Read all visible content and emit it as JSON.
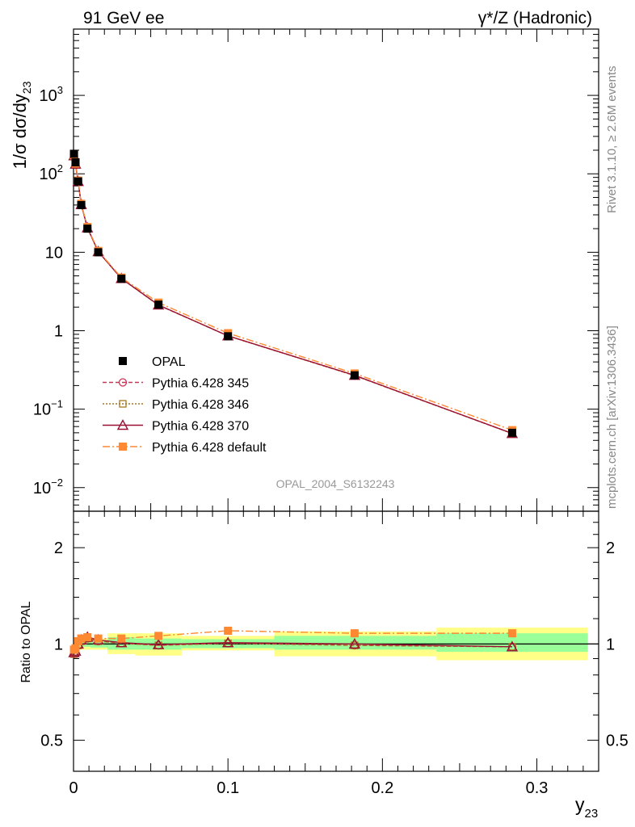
{
  "header": {
    "left_title": "91 GeV ee",
    "right_title": "γ*/Z (Hadronic)"
  },
  "side_labels": {
    "rivet": "Rivet 3.1.10, ≥ 2.6M events",
    "mcplots": "mcplots.cern.ch [arXiv:1306.3436]"
  },
  "watermark": "OPAL_2004_S6132243",
  "chart_data": [
    {
      "type": "line",
      "panel": "main",
      "yscale": "log",
      "xlim": [
        0,
        0.34
      ],
      "ylim": [
        0.005,
        7000
      ],
      "ylabel": "1/σ dσ/dy23",
      "ytick_labels": [
        {
          "value": 0.01,
          "base": "10",
          "exp": "−2"
        },
        {
          "value": 0.1,
          "base": "10",
          "exp": "−1"
        },
        {
          "value": 1,
          "base": "1",
          "exp": ""
        },
        {
          "value": 10,
          "base": "10",
          "exp": ""
        },
        {
          "value": 100,
          "base": "10",
          "exp": "2"
        },
        {
          "value": 1000,
          "base": "10",
          "exp": "3"
        }
      ],
      "x": [
        0.0003,
        0.0013,
        0.003,
        0.005,
        0.009,
        0.016,
        0.031,
        0.055,
        0.1,
        0.182,
        0.284
      ],
      "series": [
        {
          "name": "OPAL",
          "color": "#000000",
          "marker": "square-filled",
          "values": [
            180,
            140,
            80,
            40,
            20,
            10,
            4.6,
            2.15,
            0.85,
            0.27,
            0.05
          ]
        },
        {
          "name": "Pythia 6.428 345",
          "color": "#cc3355",
          "marker": "circle-open",
          "dash": "5,3",
          "values": [
            168,
            132,
            79,
            40.5,
            20.4,
            10.2,
            4.62,
            2.12,
            0.86,
            0.268,
            0.049
          ]
        },
        {
          "name": "Pythia 6.428 346",
          "color": "#aa7722",
          "marker": "square-open",
          "dash": "2,2",
          "values": [
            168,
            132,
            79,
            40.5,
            20.4,
            10.2,
            4.62,
            2.12,
            0.86,
            0.268,
            0.049
          ]
        },
        {
          "name": "Pythia 6.428 370",
          "color": "#991133",
          "marker": "triangle-open",
          "dash": "",
          "values": [
            170,
            133,
            80,
            40.7,
            20.5,
            10.2,
            4.63,
            2.13,
            0.86,
            0.27,
            0.049
          ]
        },
        {
          "name": "Pythia 6.428 default",
          "color": "#ff8833",
          "marker": "square-filled",
          "dash": "9,3,2,3",
          "values": [
            172,
            135,
            82,
            41.5,
            21,
            10.4,
            4.75,
            2.28,
            0.93,
            0.285,
            0.054
          ]
        }
      ]
    },
    {
      "type": "line",
      "panel": "ratio",
      "yscale": "log",
      "xlim": [
        0,
        0.34
      ],
      "ylim": [
        0.4,
        2.6
      ],
      "ylabel": "Ratio to OPAL",
      "xlabel": "y23",
      "xtick_labels": [
        {
          "value": 0,
          "label": "0"
        },
        {
          "value": 0.1,
          "label": "0.1"
        },
        {
          "value": 0.2,
          "label": "0.2"
        },
        {
          "value": 0.3,
          "label": "0.3"
        }
      ],
      "ytick_labels": [
        {
          "value": 0.5,
          "label": "0.5"
        },
        {
          "value": 1,
          "label": "1"
        },
        {
          "value": 2,
          "label": "2"
        }
      ],
      "bands": [
        {
          "x0": 0.0,
          "x1": 0.0005,
          "stat": [
            0.97,
            1.03
          ],
          "total": [
            0.93,
            1.07
          ]
        },
        {
          "x0": 0.0005,
          "x1": 0.002,
          "stat": [
            0.98,
            1.02
          ],
          "total": [
            0.95,
            1.05
          ]
        },
        {
          "x0": 0.002,
          "x1": 0.004,
          "stat": [
            0.98,
            1.02
          ],
          "total": [
            0.96,
            1.04
          ]
        },
        {
          "x0": 0.004,
          "x1": 0.007,
          "stat": [
            0.98,
            1.02
          ],
          "total": [
            0.96,
            1.04
          ]
        },
        {
          "x0": 0.007,
          "x1": 0.011,
          "stat": [
            0.98,
            1.02
          ],
          "total": [
            0.96,
            1.04
          ]
        },
        {
          "x0": 0.011,
          "x1": 0.022,
          "stat": [
            0.975,
            1.025
          ],
          "total": [
            0.96,
            1.04
          ]
        },
        {
          "x0": 0.022,
          "x1": 0.04,
          "stat": [
            0.96,
            1.05
          ],
          "total": [
            0.93,
            1.08
          ]
        },
        {
          "x0": 0.04,
          "x1": 0.07,
          "stat": [
            0.96,
            1.04
          ],
          "total": [
            0.92,
            1.08
          ]
        },
        {
          "x0": 0.07,
          "x1": 0.13,
          "stat": [
            0.97,
            1.035
          ],
          "total": [
            0.955,
            1.06
          ]
        },
        {
          "x0": 0.13,
          "x1": 0.235,
          "stat": [
            0.96,
            1.06
          ],
          "total": [
            0.915,
            1.095
          ]
        },
        {
          "x0": 0.235,
          "x1": 0.333,
          "stat": [
            0.945,
            1.08
          ],
          "total": [
            0.89,
            1.125
          ]
        }
      ],
      "x": [
        0.0003,
        0.0013,
        0.003,
        0.005,
        0.009,
        0.016,
        0.031,
        0.055,
        0.1,
        0.182,
        0.284
      ],
      "series": [
        {
          "name": "Pythia 6.428 345",
          "color": "#cc3355",
          "marker": "circle-open",
          "dash": "5,3",
          "values": [
            0.93,
            0.94,
            0.99,
            1.02,
            1.04,
            1.02,
            1.005,
            0.99,
            1.005,
            0.99,
            0.98
          ]
        },
        {
          "name": "Pythia 6.428 346",
          "color": "#aa7722",
          "marker": "square-open",
          "dash": "2,2",
          "values": [
            0.93,
            0.94,
            0.99,
            1.02,
            1.04,
            1.02,
            1.005,
            0.99,
            1.005,
            0.99,
            0.98
          ]
        },
        {
          "name": "Pythia 6.428 370",
          "color": "#991133",
          "marker": "triangle-open",
          "dash": "",
          "values": [
            0.94,
            0.95,
            1.0,
            1.03,
            1.05,
            1.03,
            1.01,
            0.995,
            1.01,
            1.0,
            0.98
          ]
        },
        {
          "name": "Pythia 6.428 default",
          "color": "#ff8833",
          "marker": "square-filled",
          "dash": "9,3,2,3",
          "values": [
            0.96,
            0.97,
            1.02,
            1.04,
            1.05,
            1.04,
            1.04,
            1.06,
            1.1,
            1.08,
            1.08
          ]
        }
      ]
    }
  ]
}
